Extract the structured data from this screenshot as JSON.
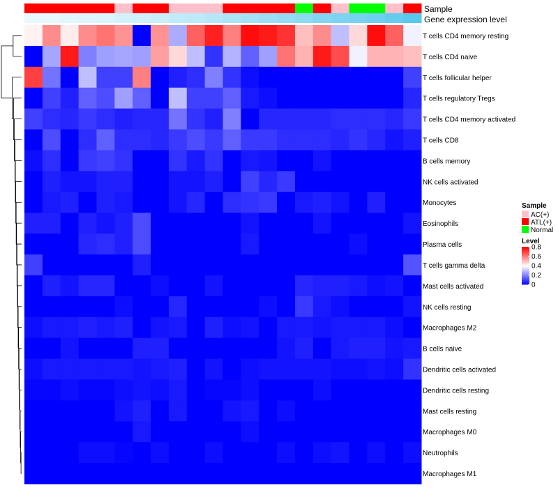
{
  "chart_data": {
    "type": "heatmap",
    "title": "",
    "annotation_titles": {
      "sample": "Sample",
      "gene_expression": "Gene expression level"
    },
    "colors": {
      "low": "#0000ff",
      "mid": "#ffffff",
      "high": "#ff0000",
      "ac": "#ffc0cb",
      "atl": "#ff0000",
      "normal": "#00ff00",
      "gene_low": "#eefaff",
      "gene_high": "#59c8ec",
      "dendro": "#000000"
    },
    "sample_groups": [
      "ATL(+)",
      "ATL(+)",
      "ATL(+)",
      "ATL(+)",
      "ATL(+)",
      "AC(+)",
      "ATL(+)",
      "ATL(+)",
      "AC(+)",
      "AC(+)",
      "AC(+)",
      "ATL(+)",
      "ATL(+)",
      "ATL(+)",
      "ATL(+)",
      "Normal",
      "ATL(+)",
      "AC(+)",
      "Normal",
      "Normal",
      "AC(+)",
      "ATL(+)"
    ],
    "gene_expression_level": [
      0.05,
      0.05,
      0.08,
      0.1,
      0.13,
      0.18,
      0.2,
      0.25,
      0.3,
      0.33,
      0.38,
      0.45,
      0.5,
      0.55,
      0.6,
      0.65,
      0.72,
      0.76,
      0.8,
      0.86,
      0.92,
      1.0
    ],
    "rows": [
      "T cells CD4 memory resting",
      "T cells CD4 naive",
      "T cells follicular helper",
      "T cells regulatory  Tregs",
      "T cells CD4 memory activated",
      "T cells CD8",
      "B cells memory",
      "NK cells activated",
      "Monocytes",
      "Eosinophils",
      "Plasma cells",
      "T cells gamma delta",
      "Mast cells activated",
      "NK cells resting",
      "Macrophages M2",
      "B cells naive",
      "Dendritic cells activated",
      "Dendritic cells resting",
      "Mast cells resting",
      "Macrophages M0",
      "Neutrophils",
      "Macrophages M1"
    ],
    "values": [
      [
        0.42,
        0.58,
        0.43,
        0.58,
        0.62,
        0.57,
        0.0,
        0.57,
        0.27,
        0.65,
        0.75,
        0.6,
        0.78,
        0.76,
        0.72,
        0.5,
        0.58,
        0.3,
        0.46,
        0.78,
        0.65,
        0.38
      ],
      [
        0.0,
        0.26,
        0.76,
        0.2,
        0.25,
        0.26,
        0.25,
        0.55,
        0.46,
        0.3,
        0.08,
        0.28,
        0.15,
        0.25,
        0.62,
        0.52,
        0.76,
        0.68,
        0.38,
        0.52,
        0.52,
        0.5
      ],
      [
        0.7,
        0.18,
        0.0,
        0.3,
        0.1,
        0.1,
        0.6,
        0.0,
        0.05,
        0.07,
        0.2,
        0.08,
        0.02,
        0.0,
        0.0,
        0.0,
        0.0,
        0.0,
        0.0,
        0.0,
        0.0,
        0.1
      ],
      [
        0.0,
        0.1,
        0.05,
        0.15,
        0.12,
        0.25,
        0.15,
        0.0,
        0.3,
        0.1,
        0.1,
        0.15,
        0.04,
        0.02,
        0.0,
        0.0,
        0.0,
        0.0,
        0.0,
        0.0,
        0.0,
        0.06
      ],
      [
        0.1,
        0.07,
        0.06,
        0.09,
        0.07,
        0.05,
        0.06,
        0.06,
        0.18,
        0.08,
        0.05,
        0.2,
        0.0,
        0.06,
        0.06,
        0.06,
        0.06,
        0.07,
        0.07,
        0.07,
        0.06,
        0.09
      ],
      [
        0.0,
        0.12,
        0.0,
        0.07,
        0.15,
        0.07,
        0.07,
        0.06,
        0.09,
        0.12,
        0.09,
        0.15,
        0.09,
        0.09,
        0.07,
        0.07,
        0.07,
        0.06,
        0.08,
        0.06,
        0.03,
        0.05
      ],
      [
        0.02,
        0.07,
        0.0,
        0.09,
        0.1,
        0.08,
        0.0,
        0.0,
        0.08,
        0.04,
        0.08,
        0.0,
        0.04,
        0.03,
        0.0,
        0.0,
        0.03,
        0.0,
        0.0,
        0.0,
        0.0,
        0.0
      ],
      [
        0.0,
        0.05,
        0.03,
        0.03,
        0.05,
        0.05,
        0.0,
        0.0,
        0.03,
        0.03,
        0.05,
        0.0,
        0.1,
        0.06,
        0.09,
        0.0,
        0.0,
        0.0,
        0.0,
        0.0,
        0.0,
        0.0
      ],
      [
        0.0,
        0.04,
        0.05,
        0.0,
        0.05,
        0.04,
        0.0,
        0.0,
        0.03,
        0.06,
        0.0,
        0.07,
        0.08,
        0.09,
        0.0,
        0.04,
        0.05,
        0.03,
        0.0,
        0.05,
        0.0,
        0.0
      ],
      [
        0.05,
        0.05,
        0.0,
        0.05,
        0.03,
        0.05,
        0.12,
        0.0,
        0.0,
        0.0,
        0.0,
        0.0,
        0.03,
        0.0,
        0.0,
        0.0,
        0.03,
        0.0,
        0.0,
        0.0,
        0.0,
        0.03
      ],
      [
        0.0,
        0.0,
        0.0,
        0.06,
        0.07,
        0.05,
        0.12,
        0.0,
        0.0,
        0.0,
        0.0,
        0.0,
        0.04,
        0.0,
        0.0,
        0.0,
        0.0,
        0.0,
        0.02,
        0.0,
        0.0,
        0.0
      ],
      [
        0.1,
        0.0,
        0.0,
        0.0,
        0.0,
        0.0,
        0.05,
        0.0,
        0.0,
        0.0,
        0.0,
        0.0,
        0.0,
        0.0,
        0.0,
        0.0,
        0.0,
        0.0,
        0.0,
        0.0,
        0.0,
        0.13
      ],
      [
        0.0,
        0.05,
        0.03,
        0.06,
        0.06,
        0.0,
        0.0,
        0.02,
        0.0,
        0.0,
        0.03,
        0.0,
        0.0,
        0.0,
        0.0,
        0.06,
        0.05,
        0.05,
        0.04,
        0.02,
        0.03,
        0.0
      ],
      [
        0.0,
        0.0,
        0.0,
        0.0,
        0.0,
        0.02,
        0.0,
        0.0,
        0.06,
        0.0,
        0.0,
        0.0,
        0.0,
        0.02,
        0.0,
        0.09,
        0.04,
        0.02,
        0.0,
        0.0,
        0.0,
        0.03
      ],
      [
        0.02,
        0.04,
        0.04,
        0.05,
        0.04,
        0.05,
        0.0,
        0.03,
        0.04,
        0.0,
        0.05,
        0.02,
        0.03,
        0.0,
        0.04,
        0.04,
        0.03,
        0.04,
        0.04,
        0.04,
        0.02,
        0.0
      ],
      [
        0.0,
        0.0,
        0.03,
        0.0,
        0.0,
        0.0,
        0.05,
        0.05,
        0.0,
        0.0,
        0.0,
        0.0,
        0.0,
        0.0,
        0.03,
        0.05,
        0.0,
        0.04,
        0.05,
        0.05,
        0.03,
        0.04
      ],
      [
        0.02,
        0.04,
        0.04,
        0.04,
        0.04,
        0.04,
        0.03,
        0.04,
        0.05,
        0.0,
        0.03,
        0.0,
        0.02,
        0.03,
        0.03,
        0.03,
        0.03,
        0.02,
        0.02,
        0.03,
        0.02,
        0.08
      ],
      [
        0.01,
        0.01,
        0.02,
        0.01,
        0.01,
        0.02,
        0.03,
        0.02,
        0.04,
        0.0,
        0.01,
        0.01,
        0.02,
        0.0,
        0.0,
        0.0,
        0.02,
        0.0,
        0.0,
        0.0,
        0.0,
        0.0
      ],
      [
        0.0,
        0.0,
        0.0,
        0.0,
        0.0,
        0.03,
        0.05,
        0.0,
        0.04,
        0.0,
        0.0,
        0.03,
        0.04,
        0.0,
        0.02,
        0.0,
        0.0,
        0.0,
        0.0,
        0.0,
        0.0,
        0.0
      ],
      [
        0.0,
        0.0,
        0.0,
        0.0,
        0.0,
        0.0,
        0.04,
        0.0,
        0.0,
        0.0,
        0.0,
        0.0,
        0.02,
        0.0,
        0.0,
        0.0,
        0.0,
        0.0,
        0.0,
        0.0,
        0.0,
        0.0
      ],
      [
        0.0,
        0.0,
        0.0,
        0.02,
        0.02,
        0.01,
        0.0,
        0.02,
        0.0,
        0.0,
        0.02,
        0.0,
        0.0,
        0.0,
        0.02,
        0.0,
        0.02,
        0.03,
        0.0,
        0.02,
        0.0,
        0.02
      ],
      [
        0.0,
        0.0,
        0.0,
        0.0,
        0.0,
        0.0,
        0.0,
        0.0,
        0.0,
        0.0,
        0.0,
        0.0,
        0.0,
        0.0,
        0.0,
        0.0,
        0.0,
        0.0,
        0.0,
        0.0,
        0.0,
        0.0
      ]
    ],
    "dendrogram_links": [
      [
        20,
        21
      ],
      [
        19,
        22
      ],
      [
        18,
        23
      ],
      [
        17,
        24
      ],
      [
        16,
        25
      ],
      [
        15,
        26
      ],
      [
        14,
        27
      ],
      [
        13,
        28
      ],
      [
        12,
        29
      ],
      [
        11,
        30
      ],
      [
        10,
        31
      ],
      [
        9,
        32
      ],
      [
        8,
        33
      ],
      [
        7,
        34
      ],
      [
        6,
        35
      ],
      [
        5,
        36
      ],
      [
        4,
        37
      ],
      [
        3,
        38
      ],
      [
        2,
        39
      ],
      [
        0,
        1
      ],
      [
        40,
        41
      ]
    ],
    "dendrogram_heights": [
      0.03,
      0.05,
      0.07,
      0.09,
      0.11,
      0.13,
      0.15,
      0.17,
      0.19,
      0.21,
      0.23,
      0.25,
      0.27,
      0.29,
      0.31,
      0.33,
      0.36,
      0.4,
      0.46,
      0.42,
      1.0
    ],
    "legend_sample": {
      "title": "Sample",
      "items": [
        "AC(+)",
        "ATL(+)",
        "Normal"
      ]
    },
    "legend_level": {
      "title": "Level",
      "min": 0,
      "max": 0.8,
      "ticks": [
        0.8,
        0.6,
        0.4,
        0.2,
        0
      ]
    }
  }
}
